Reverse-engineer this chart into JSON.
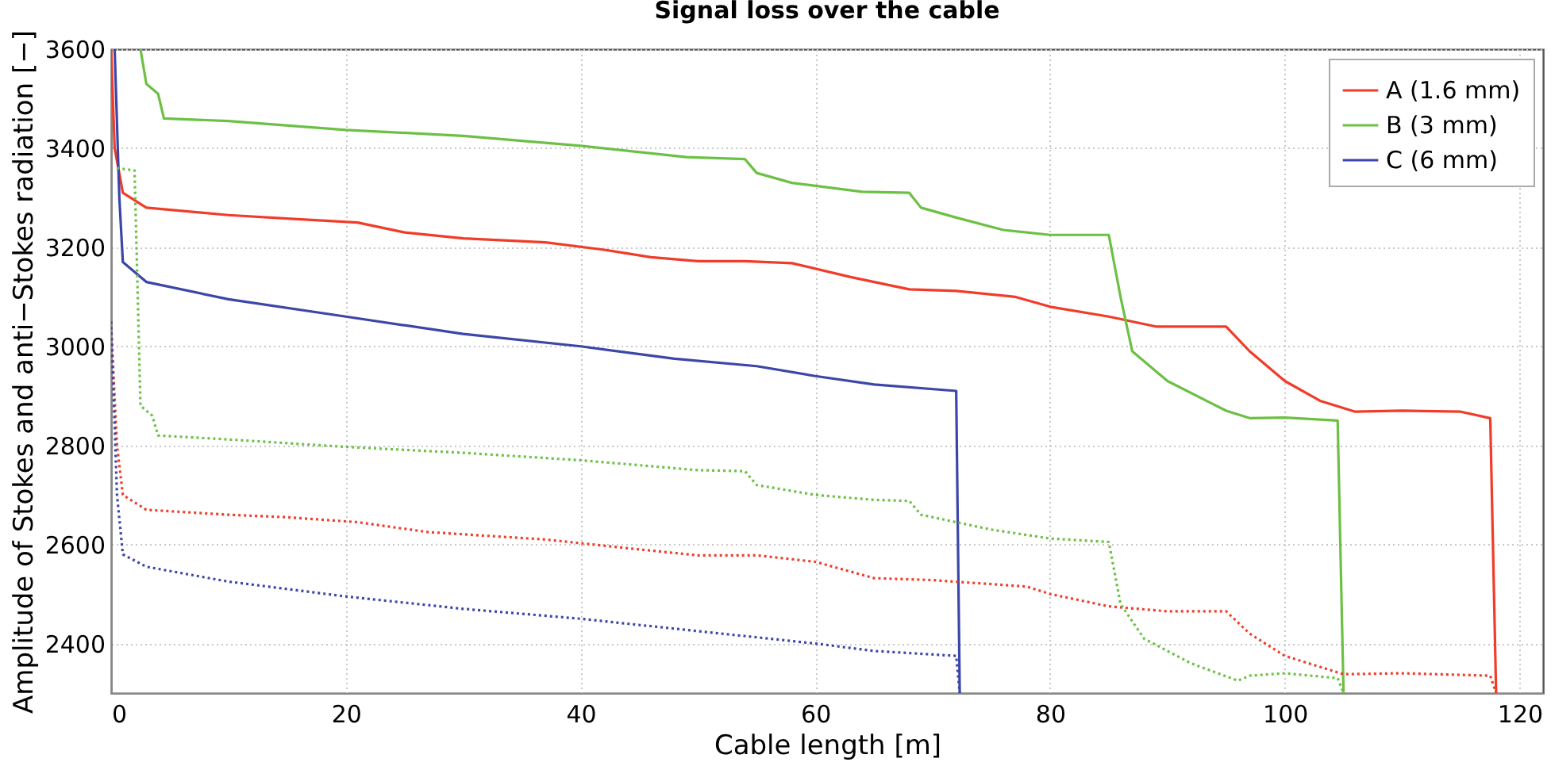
{
  "chart_data": {
    "type": "line",
    "title": "Signal loss over the cable",
    "xlabel": "Cable length [m]",
    "ylabel": "Amplitude of Stokes and anti−Stokes radiation [−]",
    "xlim": [
      0,
      122
    ],
    "xticks": [
      0,
      20,
      40,
      60,
      80,
      100,
      120
    ],
    "ylim": [
      2300,
      3600
    ],
    "yticks": [
      2400,
      2600,
      2800,
      3000,
      3200,
      3400,
      3600
    ],
    "grid": true,
    "legend": "top right",
    "series": [
      {
        "name": "A (1.6 mm)",
        "color": "#f03c28",
        "line_style": "solid",
        "x": [
          0,
          0.3,
          1,
          3,
          10,
          15,
          21,
          25,
          30,
          37,
          42,
          46,
          50,
          54,
          58,
          63,
          68,
          72,
          77,
          80,
          85,
          89,
          95,
          97,
          100,
          103,
          106,
          110,
          115,
          117.5,
          118
        ],
        "values": [
          3600,
          3400,
          3310,
          3280,
          3265,
          3258,
          3250,
          3230,
          3218,
          3210,
          3195,
          3180,
          3172,
          3172,
          3168,
          3140,
          3115,
          3112,
          3100,
          3080,
          3060,
          3040,
          3040,
          2990,
          2930,
          2890,
          2868,
          2870,
          2868,
          2855,
          2300
        ]
      },
      {
        "name": "B (3 mm)",
        "color": "#6cc044",
        "line_style": "solid",
        "x": [
          2.5,
          3,
          4,
          4.5,
          10,
          20,
          30,
          40,
          49,
          54,
          55,
          58,
          64,
          68,
          69,
          72,
          76,
          80,
          85,
          86,
          87,
          90,
          95,
          97,
          100,
          104.5,
          105
        ],
        "values": [
          3600,
          3530,
          3510,
          3460,
          3455,
          3437,
          3425,
          3405,
          3382,
          3378,
          3350,
          3330,
          3312,
          3310,
          3280,
          3260,
          3235,
          3225,
          3225,
          3100,
          2990,
          2930,
          2870,
          2855,
          2856,
          2850,
          2300
        ]
      },
      {
        "name": "C (6 mm)",
        "color": "#3c46a8",
        "line_style": "solid",
        "x": [
          0.3,
          0.7,
          1,
          3,
          10,
          20,
          30,
          40,
          48,
          55,
          60,
          65,
          72,
          72.3
        ],
        "values": [
          3600,
          3300,
          3170,
          3130,
          3095,
          3060,
          3025,
          3000,
          2975,
          2960,
          2940,
          2923,
          2910,
          2300
        ]
      },
      {
        "color": "#f03c28",
        "line_style": "dotted",
        "x": [
          0,
          0.5,
          1,
          3,
          10,
          15,
          21,
          27,
          37,
          45,
          50,
          55,
          60,
          65,
          70,
          78,
          80,
          85,
          90,
          95,
          97,
          100,
          105,
          110,
          117.5,
          118
        ],
        "values": [
          3040,
          2800,
          2700,
          2670,
          2660,
          2655,
          2645,
          2625,
          2610,
          2590,
          2578,
          2578,
          2565,
          2532,
          2528,
          2515,
          2500,
          2475,
          2465,
          2465,
          2420,
          2375,
          2338,
          2340,
          2335,
          2300
        ]
      },
      {
        "color": "#6cc044",
        "line_style": "dotted",
        "x": [
          0.5,
          2,
          2.5,
          3.5,
          4,
          10,
          20,
          30,
          40,
          50,
          54,
          55,
          60,
          65,
          68,
          69,
          75,
          80,
          85,
          86,
          88,
          92,
          96,
          97,
          100,
          104.5,
          105
        ],
        "values": [
          3360,
          3355,
          2880,
          2860,
          2820,
          2812,
          2797,
          2785,
          2770,
          2750,
          2748,
          2720,
          2700,
          2690,
          2688,
          2660,
          2630,
          2612,
          2605,
          2480,
          2410,
          2360,
          2325,
          2335,
          2340,
          2330,
          2300
        ]
      },
      {
        "color": "#3c46a8",
        "line_style": "dotted",
        "x": [
          0,
          0.5,
          1,
          3,
          10,
          20,
          30,
          40,
          50,
          60,
          65,
          72,
          72.3
        ],
        "values": [
          3050,
          2700,
          2580,
          2555,
          2525,
          2495,
          2470,
          2450,
          2425,
          2400,
          2385,
          2375,
          2300
        ]
      }
    ]
  }
}
